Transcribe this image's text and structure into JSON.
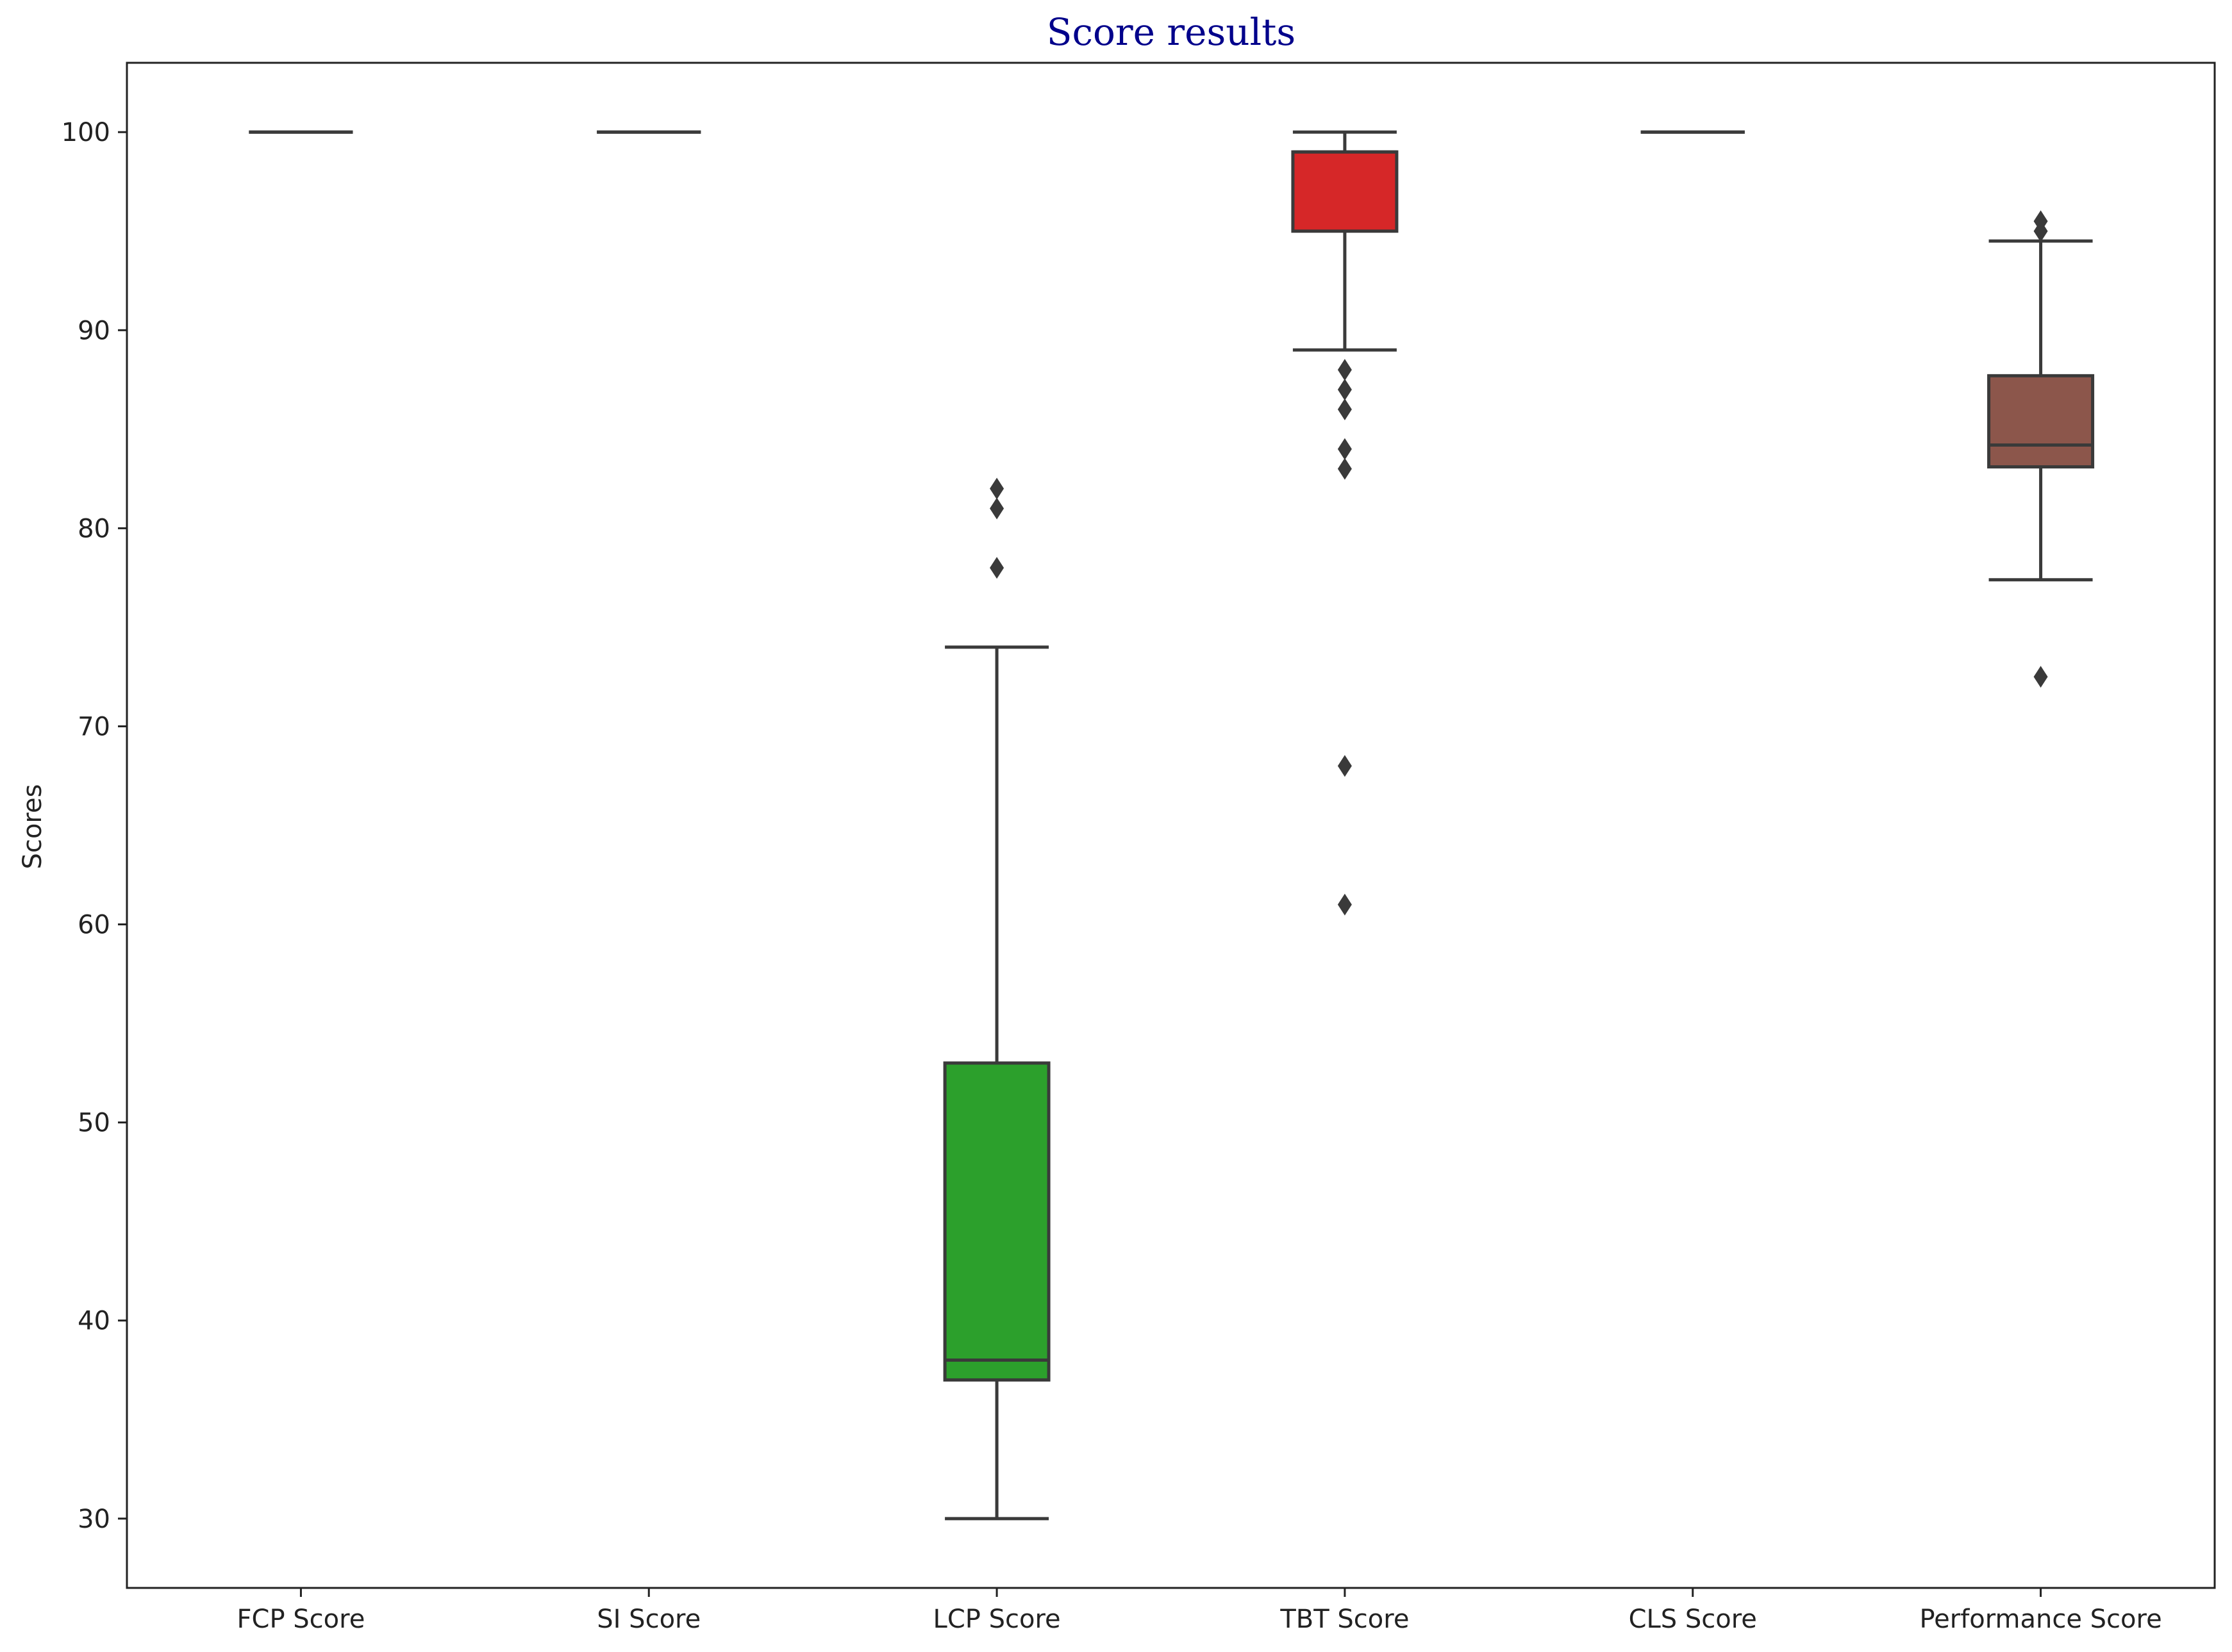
{
  "chart_data": {
    "type": "box",
    "title": "Score results",
    "xlabel": "",
    "ylabel": "Scores",
    "ylim": [
      26.5,
      103.5
    ],
    "yticks": [
      30,
      40,
      50,
      60,
      70,
      80,
      90,
      100
    ],
    "grid": false,
    "legend": "none",
    "categories": [
      "FCP Score",
      "SI Score",
      "LCP Score",
      "TBT Score",
      "CLS Score",
      "Performance Score"
    ],
    "boxes": [
      {
        "category": "FCP Score",
        "q1": 100,
        "median": 100,
        "q3": 100,
        "whisker_low": 100,
        "whisker_high": 100,
        "outliers": [],
        "color": "#1f77b4"
      },
      {
        "category": "SI Score",
        "q1": 100,
        "median": 100,
        "q3": 100,
        "whisker_low": 100,
        "whisker_high": 100,
        "outliers": [],
        "color": "#ff7f0e"
      },
      {
        "category": "LCP Score",
        "q1": 37,
        "median": 38,
        "q3": 53,
        "whisker_low": 30,
        "whisker_high": 74,
        "outliers": [
          78,
          81,
          82
        ],
        "color": "#2ca02c"
      },
      {
        "category": "TBT Score",
        "q1": 95,
        "median": 99,
        "q3": 99,
        "whisker_low": 89,
        "whisker_high": 100,
        "outliers": [
          88,
          87,
          86,
          84,
          83,
          68,
          61
        ],
        "color": "#d62728"
      },
      {
        "category": "CLS Score",
        "q1": 100,
        "median": 100,
        "q3": 100,
        "whisker_low": 100,
        "whisker_high": 100,
        "outliers": [],
        "color": "#9467bd"
      },
      {
        "category": "Performance Score",
        "q1": 83.1,
        "median": 84.2,
        "q3": 87.7,
        "whisker_low": 77.4,
        "whisker_high": 94.5,
        "outliers": [
          95.0,
          95.5,
          72.5
        ],
        "color": "#8c564b"
      }
    ],
    "line_color": "#3a3a3a"
  }
}
